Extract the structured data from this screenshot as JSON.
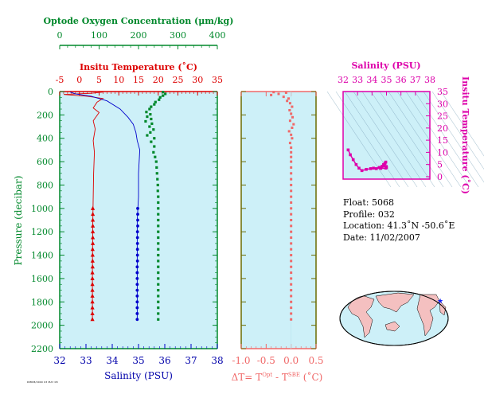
{
  "chart_data": [
    {
      "type": "line",
      "name": "profile",
      "top_axis_title": "Optode Oxygen Concentration (μm/kg)",
      "top_axis_ticks": [
        "0",
        "100",
        "200",
        "300",
        "400"
      ],
      "temp_axis_title": "Insitu Temperature (˚C)",
      "temp_axis_ticks": [
        "-5",
        "0",
        "5",
        "10",
        "15",
        "20",
        "25",
        "30",
        "35"
      ],
      "ylabel": "Pressure (decibar)",
      "y_ticks": [
        "0",
        "200",
        "400",
        "600",
        "800",
        "1000",
        "1200",
        "1400",
        "1600",
        "1800",
        "2000",
        "2200"
      ],
      "xlabel": "Salinity (PSU)",
      "x_ticks": [
        "32",
        "33",
        "34",
        "35",
        "36",
        "37",
        "38"
      ],
      "ylim": [
        0,
        2200
      ],
      "xlim_salinity": [
        32,
        38
      ],
      "xlim_temperature": [
        -5,
        35
      ],
      "xlim_oxygen": [
        0,
        400
      ],
      "colors": {
        "oxygen": "#00882b",
        "temperature": "#dd0000",
        "salinity": "#0000cc",
        "background": "#cdf0f8"
      },
      "temperature_line": [
        [
          6,
          5
        ],
        [
          3,
          15
        ],
        [
          -4,
          25
        ],
        [
          2,
          40
        ],
        [
          6,
          60
        ],
        [
          4.5,
          90
        ],
        [
          3.5,
          140
        ],
        [
          5,
          180
        ],
        [
          3.5,
          250
        ],
        [
          4,
          320
        ],
        [
          3.5,
          420
        ],
        [
          3.8,
          520
        ],
        [
          3.6,
          700
        ],
        [
          3.5,
          900
        ],
        [
          3.4,
          1100
        ],
        [
          3.3,
          1500
        ],
        [
          3.3,
          1950
        ]
      ],
      "temperature_points": [
        [
          3.4,
          1000
        ],
        [
          3.4,
          1050
        ],
        [
          3.4,
          1100
        ],
        [
          3.4,
          1150
        ],
        [
          3.4,
          1200
        ],
        [
          3.4,
          1250
        ],
        [
          3.4,
          1300
        ],
        [
          3.35,
          1350
        ],
        [
          3.35,
          1400
        ],
        [
          3.35,
          1450
        ],
        [
          3.35,
          1500
        ],
        [
          3.3,
          1550
        ],
        [
          3.3,
          1600
        ],
        [
          3.3,
          1650
        ],
        [
          3.3,
          1700
        ],
        [
          3.3,
          1750
        ],
        [
          3.3,
          1800
        ],
        [
          3.3,
          1850
        ],
        [
          3.3,
          1900
        ],
        [
          3.3,
          1950
        ]
      ],
      "salinity_line": [
        [
          32.4,
          5
        ],
        [
          32.6,
          20
        ],
        [
          33.2,
          40
        ],
        [
          33.8,
          80
        ],
        [
          34.3,
          150
        ],
        [
          34.6,
          220
        ],
        [
          34.8,
          280
        ],
        [
          34.9,
          350
        ],
        [
          34.95,
          420
        ],
        [
          35.05,
          500
        ],
        [
          35.0,
          700
        ],
        [
          35.0,
          900
        ],
        [
          34.95,
          1100
        ],
        [
          34.95,
          1500
        ],
        [
          34.95,
          1950
        ]
      ],
      "salinity_points": [
        [
          34.97,
          1000
        ],
        [
          34.97,
          1050
        ],
        [
          34.97,
          1100
        ],
        [
          34.97,
          1150
        ],
        [
          34.96,
          1200
        ],
        [
          34.96,
          1250
        ],
        [
          34.96,
          1300
        ],
        [
          34.96,
          1350
        ],
        [
          34.96,
          1400
        ],
        [
          34.96,
          1450
        ],
        [
          34.95,
          1500
        ],
        [
          34.95,
          1550
        ],
        [
          34.95,
          1600
        ],
        [
          34.95,
          1650
        ],
        [
          34.95,
          1700
        ],
        [
          34.95,
          1750
        ],
        [
          34.95,
          1800
        ],
        [
          34.95,
          1850
        ],
        [
          34.95,
          1900
        ],
        [
          34.95,
          1950
        ]
      ],
      "oxygen_points": [
        [
          262,
          5
        ],
        [
          268,
          20
        ],
        [
          262,
          35
        ],
        [
          255,
          50
        ],
        [
          252,
          70
        ],
        [
          243,
          90
        ],
        [
          240,
          110
        ],
        [
          232,
          130
        ],
        [
          228,
          150
        ],
        [
          220,
          175
        ],
        [
          230,
          195
        ],
        [
          222,
          215
        ],
        [
          232,
          235
        ],
        [
          218,
          255
        ],
        [
          234,
          275
        ],
        [
          228,
          300
        ],
        [
          238,
          325
        ],
        [
          230,
          350
        ],
        [
          222,
          375
        ],
        [
          240,
          400
        ],
        [
          232,
          430
        ],
        [
          240,
          470
        ],
        [
          238,
          520
        ],
        [
          242,
          560
        ],
        [
          245,
          600
        ],
        [
          246,
          650
        ],
        [
          247,
          700
        ],
        [
          248,
          750
        ],
        [
          249,
          800
        ],
        [
          249,
          850
        ],
        [
          250,
          900
        ],
        [
          250,
          950
        ],
        [
          250,
          1000
        ],
        [
          250,
          1050
        ],
        [
          250,
          1100
        ],
        [
          250,
          1150
        ],
        [
          250,
          1200
        ],
        [
          250,
          1250
        ],
        [
          250,
          1300
        ],
        [
          250,
          1350
        ],
        [
          250,
          1400
        ],
        [
          250,
          1450
        ],
        [
          250,
          1500
        ],
        [
          250,
          1550
        ],
        [
          250,
          1600
        ],
        [
          250,
          1650
        ],
        [
          250,
          1700
        ],
        [
          250,
          1750
        ],
        [
          250,
          1800
        ],
        [
          250,
          1850
        ],
        [
          250,
          1900
        ],
        [
          250,
          1950
        ]
      ]
    },
    {
      "type": "scatter",
      "name": "delta-t",
      "xlabel": "ΔT= T",
      "xlabel_sup1": "Opt",
      "xlabel_mid": " - T",
      "xlabel_sup2": "SBE",
      "xlabel_end": " (˚C)",
      "x_ticks": [
        "-1.0",
        "-0.5",
        "0.0",
        "0.5"
      ],
      "xlim": [
        -1.0,
        0.5
      ],
      "ylim": [
        0,
        2200
      ],
      "color": "#f06868",
      "points": [
        [
          -0.35,
          5
        ],
        [
          -0.1,
          10
        ],
        [
          -0.25,
          20
        ],
        [
          -0.4,
          30
        ],
        [
          -0.15,
          45
        ],
        [
          -0.05,
          60
        ],
        [
          -0.08,
          80
        ],
        [
          -0.02,
          100
        ],
        [
          0.02,
          130
        ],
        [
          -0.03,
          160
        ],
        [
          0.0,
          190
        ],
        [
          0.03,
          220
        ],
        [
          -0.02,
          250
        ],
        [
          0.05,
          280
        ],
        [
          0.02,
          310
        ],
        [
          -0.04,
          340
        ],
        [
          0.0,
          370
        ],
        [
          0.02,
          400
        ],
        [
          -0.02,
          440
        ],
        [
          0.0,
          480
        ],
        [
          0.0,
          520
        ],
        [
          0.0,
          560
        ],
        [
          0.0,
          600
        ],
        [
          0.0,
          650
        ],
        [
          0.0,
          700
        ],
        [
          0.0,
          750
        ],
        [
          0.0,
          800
        ],
        [
          0.0,
          850
        ],
        [
          0.0,
          900
        ],
        [
          0.0,
          950
        ],
        [
          0.0,
          1000
        ],
        [
          0.0,
          1050
        ],
        [
          0.0,
          1100
        ],
        [
          0.0,
          1150
        ],
        [
          0.0,
          1200
        ],
        [
          0.0,
          1250
        ],
        [
          0.0,
          1300
        ],
        [
          0.0,
          1350
        ],
        [
          0.0,
          1400
        ],
        [
          0.0,
          1450
        ],
        [
          0.0,
          1500
        ],
        [
          0.0,
          1550
        ],
        [
          0.0,
          1600
        ],
        [
          0.0,
          1650
        ],
        [
          0.0,
          1700
        ],
        [
          0.0,
          1750
        ],
        [
          0.0,
          1800
        ],
        [
          0.0,
          1850
        ],
        [
          0.0,
          1900
        ],
        [
          0.0,
          1950
        ]
      ]
    },
    {
      "type": "scatter",
      "name": "ts-diagram",
      "title": "Salinity (PSU)",
      "x_ticks": [
        "32",
        "33",
        "34",
        "35",
        "36",
        "37",
        "38"
      ],
      "ylabel": "Insitu Temperature (˚C)",
      "y_ticks": [
        "0",
        "5",
        "10",
        "15",
        "20",
        "25",
        "30",
        "35"
      ],
      "xlim": [
        32,
        38
      ],
      "ylim": [
        -1,
        35
      ],
      "color": "#dd00aa",
      "points": [
        [
          32.35,
          11
        ],
        [
          32.5,
          9
        ],
        [
          32.7,
          7
        ],
        [
          32.9,
          5
        ],
        [
          33.1,
          3.5
        ],
        [
          33.3,
          2.5
        ],
        [
          33.6,
          3.0
        ],
        [
          33.9,
          3.3
        ],
        [
          34.1,
          3.5
        ],
        [
          34.3,
          3.3
        ],
        [
          34.5,
          3.8
        ],
        [
          34.7,
          4.3
        ],
        [
          34.8,
          5.0
        ],
        [
          34.9,
          5.5
        ],
        [
          34.95,
          6.0
        ],
        [
          34.85,
          4.5
        ],
        [
          34.6,
          3.4
        ],
        [
          34.95,
          3.5
        ],
        [
          35.0,
          3.8
        ],
        [
          34.98,
          4.2
        ]
      ]
    }
  ],
  "float_info": {
    "float": "Float:  5068",
    "profile": "Profile:  032",
    "location": "Location:  41.3˚N  -50.6˚E",
    "date": "Date:  11/02/2007"
  },
  "map": {
    "land_color": "#f4c0c0",
    "ocean_color": "#cdf0f8",
    "marker_color": "#1020ff"
  },
  "stamp": "DMRM/0000 03 MAY 08"
}
